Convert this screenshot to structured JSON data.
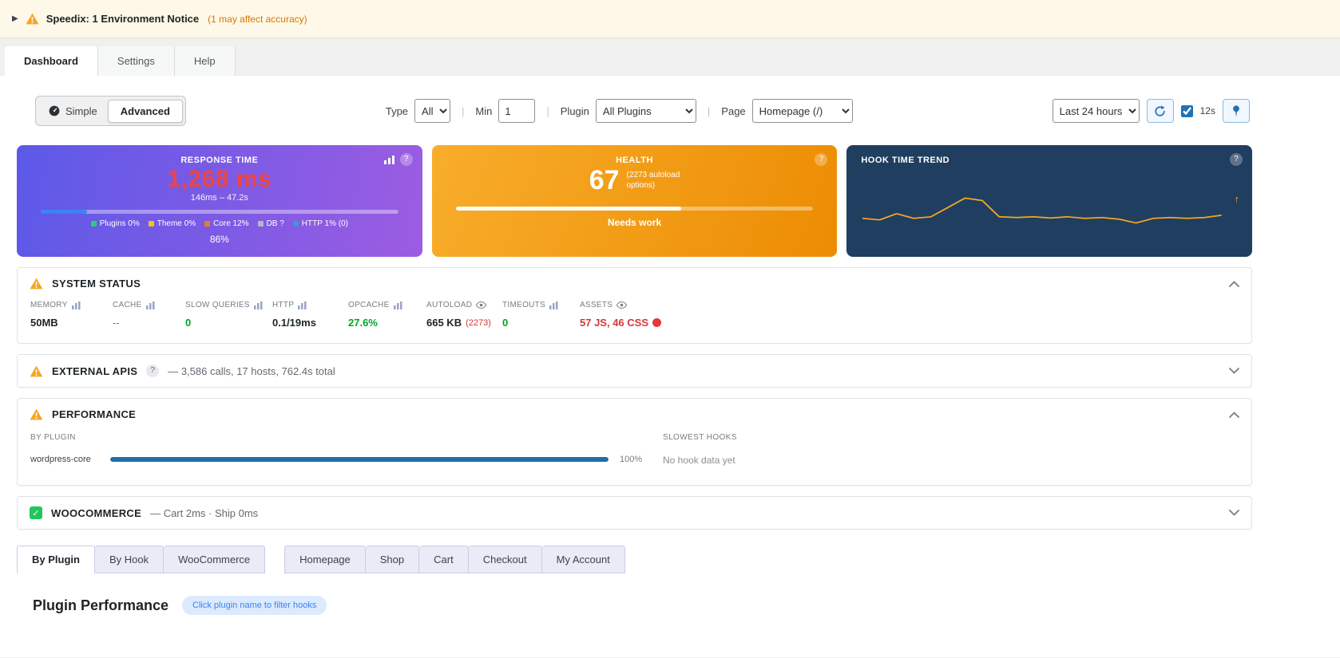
{
  "ui": {
    "expander_glyph": "▶",
    "help_glyph": "?",
    "check_glyph": "✓",
    "up_arrow": "↑",
    "separator": "|"
  },
  "colors": {
    "accent_blue": "#2271b1",
    "green": "#00a32a",
    "red": "#d63638",
    "warning_orange": "#f5a623",
    "card_purple_start": "#5c59e8",
    "card_purple_end": "#9c5ce2",
    "card_orange_start": "#f8ad2b",
    "card_orange_end": "#ec8c03",
    "card_navy": "#203e5f",
    "trend_line": "#f5a623",
    "response_value_red": "#ef4444",
    "plugin_bar_blue": "#1e6fa9"
  },
  "notice": {
    "title": "Speedix: 1 Environment Notice",
    "note": "(1 may affect accuracy)"
  },
  "nav_tabs": [
    {
      "label": "Dashboard",
      "active": true
    },
    {
      "label": "Settings",
      "active": false
    },
    {
      "label": "Help",
      "active": false
    }
  ],
  "toolbar": {
    "simple_label": "Simple",
    "advanced_label": "Advanced",
    "type_label": "Type",
    "type_value": "All",
    "min_label": "Min",
    "min_value": "1",
    "plugin_label": "Plugin",
    "plugin_value": "All Plugins",
    "page_label": "Page",
    "page_value": "Homepage (/)",
    "time_range_value": "Last 24 hours",
    "refresh_interval": "12s"
  },
  "cards": {
    "response_time": {
      "title": "RESPONSE TIME",
      "value": "1,268 ms",
      "range": "146ms – 47.2s",
      "bar_percent": 13,
      "legend": [
        {
          "label": "Plugins 0%",
          "color": "#2ecc71"
        },
        {
          "label": "Theme 0%",
          "color": "#f1c40f"
        },
        {
          "label": "Core 12%",
          "color": "#e67e22"
        },
        {
          "label": "DB ?",
          "color": "#aeb8c2"
        },
        {
          "label": "HTTP 1% (0)",
          "color": "#3498db"
        }
      ],
      "percent_label": "86%"
    },
    "health": {
      "title": "HEALTH",
      "score": "67",
      "note_line1": "(2273 autoload",
      "note_line2": "options)",
      "bar_percent": 63,
      "status": "Needs work"
    },
    "hook_trend": {
      "title": "HOOK TIME TREND"
    }
  },
  "chart_data": {
    "type": "line",
    "title": "HOOK TIME TREND",
    "series": [
      {
        "name": "hook time",
        "values": [
          2.9,
          2.8,
          3.2,
          2.9,
          3.0,
          3.6,
          4.2,
          4.05,
          3.0,
          2.95,
          3.0,
          2.92,
          3.0,
          2.9,
          2.95,
          2.85,
          2.6,
          2.9,
          2.95,
          2.9,
          2.95,
          3.1
        ]
      }
    ],
    "line_color": "#f5a623",
    "axes_visible": false,
    "legend_visible": false
  },
  "system_status": {
    "title": "SYSTEM STATUS",
    "metrics": [
      {
        "label": "MEMORY",
        "value": "50MB"
      },
      {
        "label": "CACHE",
        "value": "--"
      },
      {
        "label": "SLOW QUERIES",
        "value": "0"
      },
      {
        "label": "HTTP",
        "value": "0.1/19ms"
      },
      {
        "label": "OPCACHE",
        "value": "27.6%"
      },
      {
        "label": "AUTOLOAD",
        "value": "665 KB",
        "suffix": "(2273)"
      },
      {
        "label": "TIMEOUTS",
        "value": "0"
      },
      {
        "label": "ASSETS",
        "value": "57 JS, 46 CSS"
      }
    ]
  },
  "external_apis": {
    "title": "EXTERNAL APIS",
    "summary": "— 3,586 calls, 17 hosts, 762.4s total"
  },
  "performance": {
    "title": "PERFORMANCE",
    "by_plugin_label": "BY PLUGIN",
    "slowest_hooks_label": "SLOWEST HOOKS",
    "plugins": [
      {
        "name": "wordpress-core",
        "percent": 100,
        "percent_label": "100%"
      }
    ],
    "no_hook_data": "No hook data yet"
  },
  "woocommerce": {
    "title": "WOOCOMMERCE",
    "summary": "— Cart 2ms · Ship 0ms"
  },
  "analysis_tabs": [
    {
      "label": "By Plugin",
      "active": true
    },
    {
      "label": "By Hook",
      "active": false
    },
    {
      "label": "WooCommerce",
      "active": false
    }
  ],
  "page_tabs": [
    {
      "label": "Homepage"
    },
    {
      "label": "Shop"
    },
    {
      "label": "Cart"
    },
    {
      "label": "Checkout"
    },
    {
      "label": "My Account"
    }
  ],
  "plugin_performance": {
    "title": "Plugin Performance",
    "hint": "Click plugin name to filter hooks"
  }
}
